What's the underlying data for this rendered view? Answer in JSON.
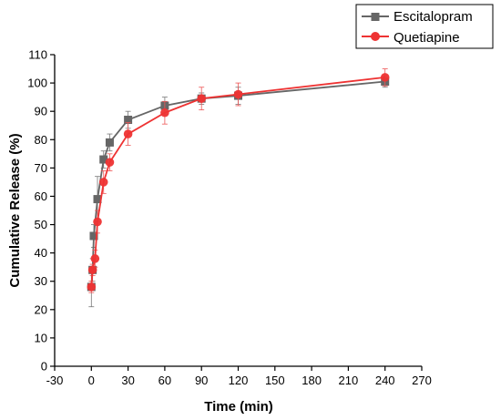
{
  "chart_data": {
    "type": "line",
    "title": "",
    "xlabel": "Time (min)",
    "ylabel": "Cumulative Release (%)",
    "xlim": [
      -30,
      270
    ],
    "ylim": [
      0,
      110
    ],
    "xticks": [
      -30,
      0,
      30,
      60,
      90,
      120,
      150,
      180,
      210,
      240,
      270
    ],
    "yticks": [
      0,
      10,
      20,
      30,
      40,
      50,
      60,
      70,
      80,
      90,
      100,
      110
    ],
    "grid": false,
    "legend_position": "top-right",
    "series": [
      {
        "name": "Escitalopram",
        "color": "#666666",
        "marker": "square",
        "x": [
          0,
          1,
          2,
          5,
          10,
          15,
          30,
          60,
          90,
          120,
          240
        ],
        "y": [
          28,
          34,
          46,
          59,
          73,
          79,
          87,
          92,
          94.5,
          95.5,
          100.5
        ],
        "err": [
          7,
          4,
          4,
          8,
          3,
          3,
          3,
          3,
          2,
          3,
          2
        ]
      },
      {
        "name": "Quetiapine",
        "color": "#ee3333",
        "marker": "circle",
        "x": [
          0,
          1,
          3,
          5,
          10,
          15,
          30,
          60,
          90,
          120,
          240
        ],
        "y": [
          28,
          34,
          38,
          51,
          65,
          72,
          82,
          89.5,
          94.5,
          96,
          102
        ],
        "err": [
          2,
          2,
          3,
          4,
          4,
          3,
          4,
          4,
          4,
          4,
          3
        ]
      }
    ]
  }
}
